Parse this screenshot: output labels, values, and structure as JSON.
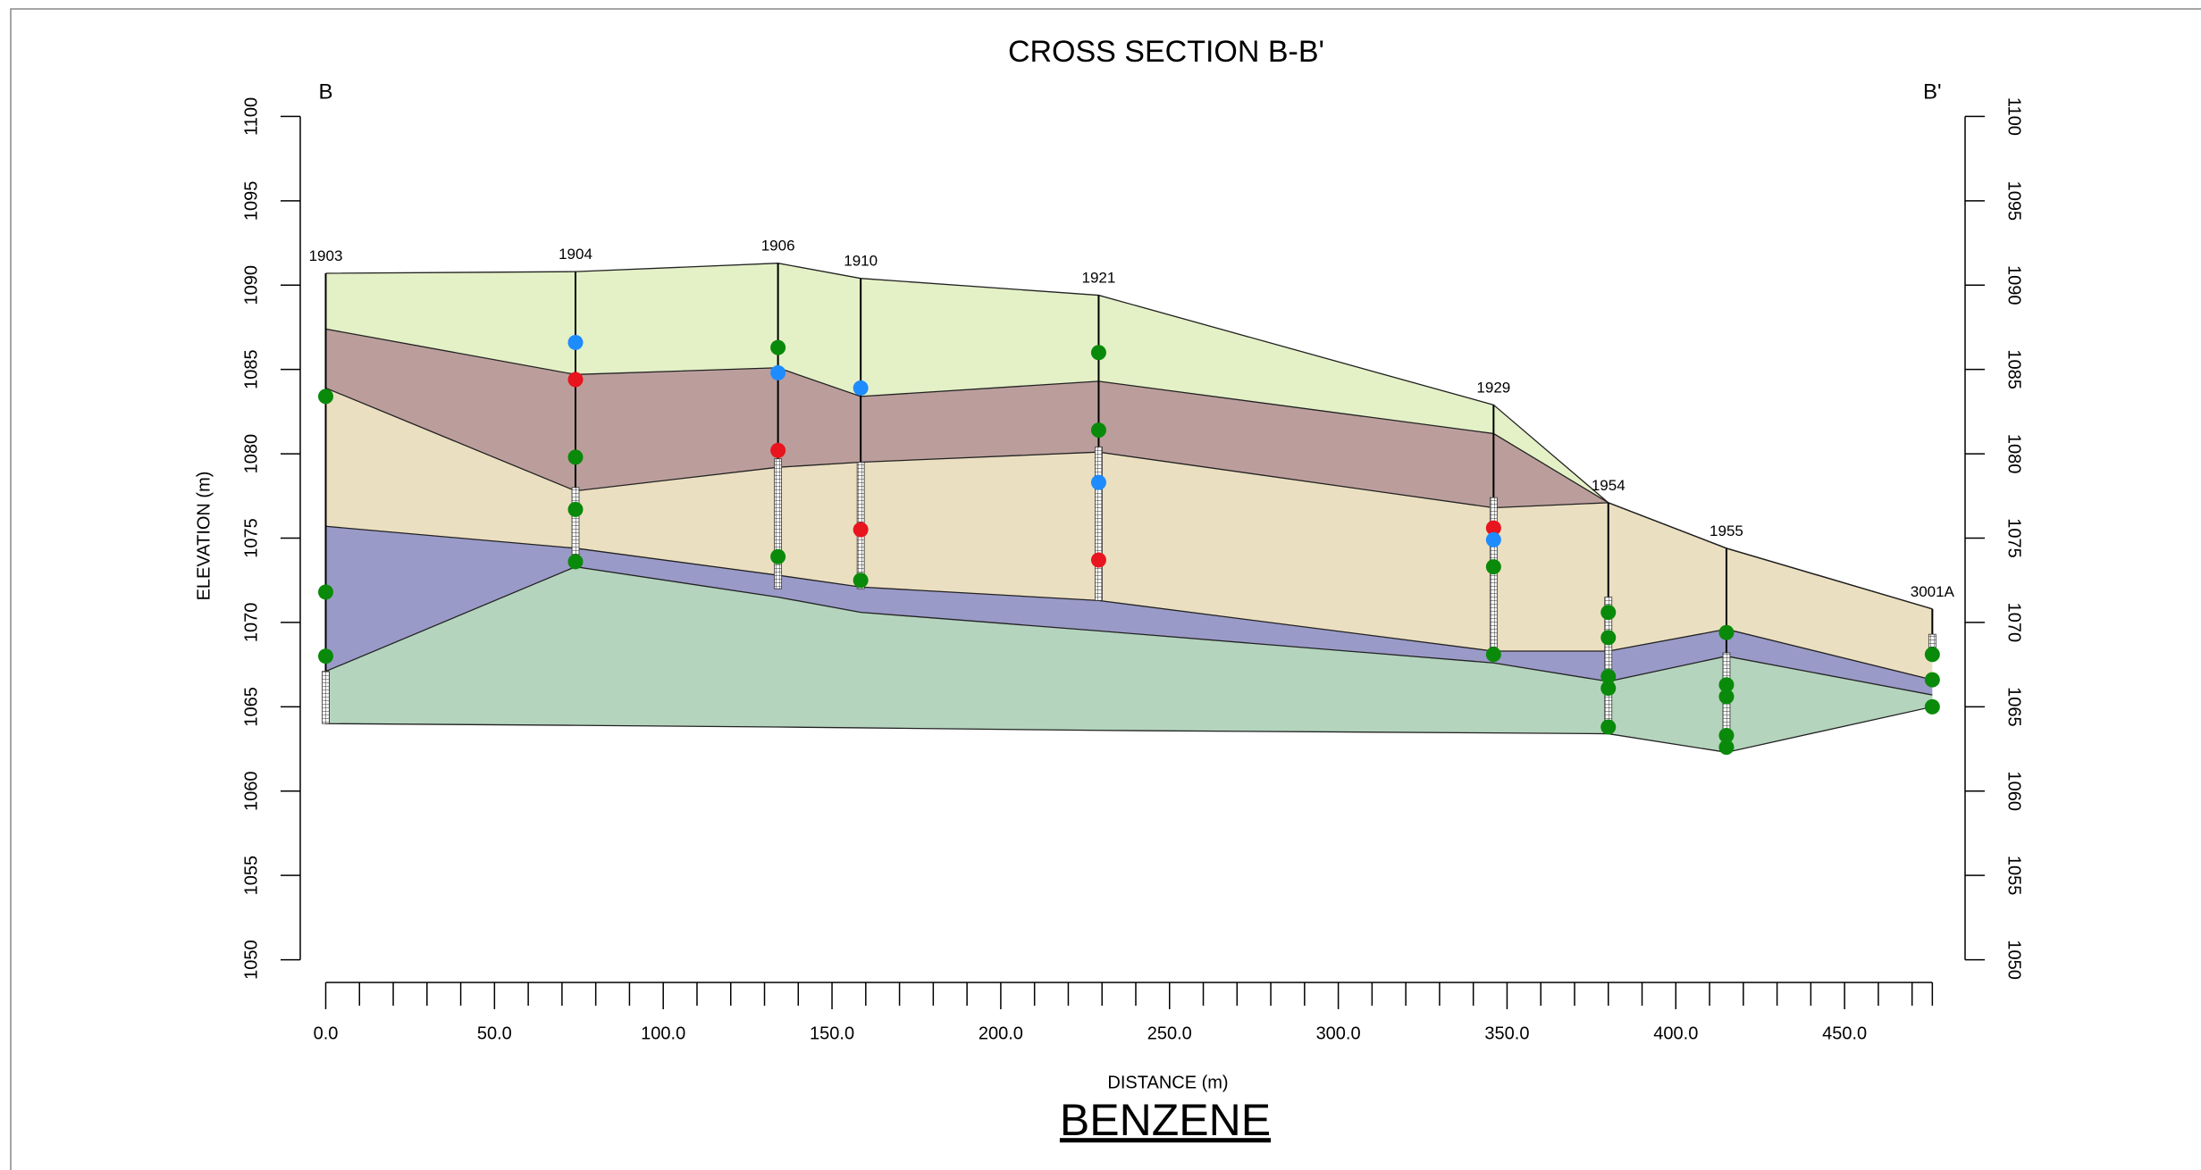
{
  "chart_data": {
    "type": "cross-section",
    "title": "CROSS SECTION B-B'",
    "subtitle": "BENZENE",
    "xlabel": "DISTANCE (m)",
    "ylabel": "ELEVATION (m)",
    "end_labels": [
      "B",
      "B'"
    ],
    "xlim": [
      0,
      476
    ],
    "ylim": [
      1050,
      1100
    ],
    "xticks": [
      {
        "value": 0,
        "label": "0.0"
      },
      {
        "value": 50,
        "label": "50.0"
      },
      {
        "value": 100,
        "label": "100.0"
      },
      {
        "value": 150,
        "label": "150.0"
      },
      {
        "value": 200,
        "label": "200.0"
      },
      {
        "value": 250,
        "label": "250.0"
      },
      {
        "value": 300,
        "label": "300.0"
      },
      {
        "value": 350,
        "label": "350.0"
      },
      {
        "value": 400,
        "label": "400.0"
      },
      {
        "value": 450,
        "label": "450.0"
      }
    ],
    "xminorticks": [
      10,
      20,
      30,
      40,
      60,
      70,
      80,
      90,
      110,
      120,
      130,
      140,
      160,
      170,
      180,
      190,
      210,
      220,
      230,
      240,
      260,
      270,
      280,
      290,
      310,
      320,
      330,
      340,
      360,
      370,
      380,
      390,
      410,
      420,
      430,
      440,
      460,
      470
    ],
    "yticks": [
      1050,
      1055,
      1060,
      1065,
      1070,
      1075,
      1080,
      1085,
      1090,
      1095,
      1100
    ],
    "x": [
      0,
      74,
      134,
      158.5,
      229,
      346,
      380,
      415,
      476
    ],
    "well_names": [
      "1903",
      "1904",
      "1906",
      "1910",
      "1921",
      "1929",
      "1954",
      "1955",
      "3001A"
    ],
    "surfaces": [
      {
        "values": [
          1090.7,
          1090.8,
          1091.3,
          1090.4,
          1089.4,
          1082.9,
          1077.1,
          1074.4,
          1070.8
        ]
      },
      {
        "values": [
          1087.4,
          1084.7,
          1085.1,
          1083.4,
          1084.3,
          1081.2,
          1077.1,
          1074.4,
          1070.8
        ]
      },
      {
        "values": [
          1083.9,
          1077.8,
          1079.2,
          1079.5,
          1080.1,
          1076.8,
          1077.1,
          1074.4,
          1070.8
        ]
      },
      {
        "values": [
          1075.7,
          1074.4,
          1072.8,
          1072.1,
          1071.3,
          1068.3,
          1068.3,
          1069.6,
          1066.6
        ]
      },
      {
        "values": [
          1067.1,
          1073.3,
          1071.5,
          1070.6,
          1069.5,
          1067.6,
          1066.5,
          1068.0,
          1065.7
        ]
      },
      {
        "values": [
          1064.0,
          1063.9,
          1063.8,
          1063.75,
          1063.6,
          1063.45,
          1063.4,
          1062.3,
          1065.0
        ]
      }
    ],
    "layer_colors": [
      "#e4f0c6",
      "#bb9e9c",
      "#ebdfc1",
      "#9a9ac8",
      "#b4d4bd"
    ],
    "screens": [
      [
        1067.1,
        1064.0
      ],
      [
        1078.0,
        1074.0
      ],
      [
        1079.7,
        1072.0
      ],
      [
        1079.5,
        1072.0
      ],
      [
        1080.4,
        1071.3
      ],
      [
        1077.4,
        1067.8
      ],
      [
        1071.5,
        1063.6
      ],
      [
        1068.2,
        1062.7
      ],
      [
        1069.3,
        1067.8
      ]
    ],
    "samples": [
      [
        {
          "elevation": 1083.4,
          "color": "#0a8a0a"
        },
        {
          "elevation": 1071.8,
          "color": "#0a8a0a"
        },
        {
          "elevation": 1068.0,
          "color": "#0a8a0a"
        }
      ],
      [
        {
          "elevation": 1086.6,
          "color": "#1e8cff"
        },
        {
          "elevation": 1084.4,
          "color": "#e8141e"
        },
        {
          "elevation": 1079.8,
          "color": "#0a8a0a"
        },
        {
          "elevation": 1076.7,
          "color": "#0a8a0a"
        },
        {
          "elevation": 1073.6,
          "color": "#0a8a0a"
        }
      ],
      [
        {
          "elevation": 1086.3,
          "color": "#0a8a0a"
        },
        {
          "elevation": 1084.8,
          "color": "#1e8cff"
        },
        {
          "elevation": 1080.2,
          "color": "#e8141e"
        },
        {
          "elevation": 1073.9,
          "color": "#0a8a0a"
        }
      ],
      [
        {
          "elevation": 1083.9,
          "color": "#1e8cff"
        },
        {
          "elevation": 1075.5,
          "color": "#e8141e"
        },
        {
          "elevation": 1072.5,
          "color": "#0a8a0a"
        }
      ],
      [
        {
          "elevation": 1086.0,
          "color": "#0a8a0a"
        },
        {
          "elevation": 1081.4,
          "color": "#0a8a0a"
        },
        {
          "elevation": 1078.3,
          "color": "#1e8cff"
        },
        {
          "elevation": 1073.7,
          "color": "#e8141e"
        }
      ],
      [
        {
          "elevation": 1075.6,
          "color": "#e8141e"
        },
        {
          "elevation": 1074.9,
          "color": "#1e8cff"
        },
        {
          "elevation": 1073.3,
          "color": "#0a8a0a"
        },
        {
          "elevation": 1068.1,
          "color": "#0a8a0a"
        }
      ],
      [
        {
          "elevation": 1070.6,
          "color": "#0a8a0a"
        },
        {
          "elevation": 1069.1,
          "color": "#0a8a0a"
        },
        {
          "elevation": 1066.8,
          "color": "#0a8a0a"
        },
        {
          "elevation": 1066.1,
          "color": "#0a8a0a"
        },
        {
          "elevation": 1063.8,
          "color": "#0a8a0a"
        }
      ],
      [
        {
          "elevation": 1069.4,
          "color": "#0a8a0a"
        },
        {
          "elevation": 1066.3,
          "color": "#0a8a0a"
        },
        {
          "elevation": 1065.6,
          "color": "#0a8a0a"
        },
        {
          "elevation": 1063.3,
          "color": "#0a8a0a"
        },
        {
          "elevation": 1062.6,
          "color": "#0a8a0a"
        }
      ],
      [
        {
          "elevation": 1068.1,
          "color": "#0a8a0a"
        },
        {
          "elevation": 1066.6,
          "color": "#0a8a0a"
        },
        {
          "elevation": 1065.0,
          "color": "#0a8a0a"
        }
      ]
    ]
  }
}
